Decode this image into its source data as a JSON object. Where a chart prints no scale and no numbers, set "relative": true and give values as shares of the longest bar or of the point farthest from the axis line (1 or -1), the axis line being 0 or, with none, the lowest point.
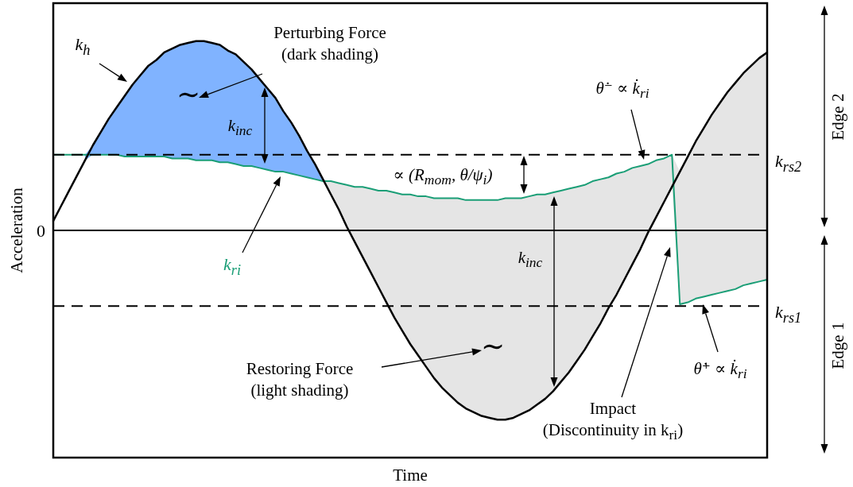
{
  "chart_data": {
    "type": "line",
    "xlabel": "Time",
    "ylabel": "Acceleration",
    "relative": true,
    "categories": [
      null,
      null,
      null,
      null,
      null,
      null,
      null,
      null,
      null,
      null,
      null,
      null,
      null,
      null,
      null,
      null,
      null,
      null,
      null,
      null,
      null,
      null,
      null,
      null,
      null,
      null,
      null,
      null,
      null,
      null,
      null,
      null,
      null,
      null,
      null,
      null,
      null,
      null,
      null,
      null,
      null,
      null,
      null,
      null,
      null,
      null,
      null,
      null,
      null,
      null,
      null,
      null,
      null,
      null,
      null,
      null,
      null,
      null,
      null,
      null,
      null,
      null,
      null,
      null,
      null,
      null,
      null,
      null,
      null,
      null,
      null,
      null,
      null,
      null,
      null,
      null,
      null,
      null,
      null,
      null,
      null,
      null,
      null,
      null,
      null,
      null,
      null,
      null,
      null,
      null,
      null
    ],
    "series": [
      {
        "name": "k$_{h}$",
        "color": "#000000",
        "values": [
          0.05,
          0.13,
          0.21,
          0.29,
          0.37,
          0.45,
          0.52,
          0.59,
          0.65,
          0.71,
          0.77,
          0.82,
          0.87,
          0.9,
          0.94,
          0.96,
          0.98,
          0.99,
          1.0,
          1.0,
          0.99,
          0.98,
          0.95,
          0.93,
          0.89,
          0.85,
          0.8,
          0.75,
          0.7,
          0.63,
          0.57,
          0.5,
          0.42,
          0.35,
          0.27,
          0.19,
          0.11,
          0.02,
          -0.06,
          -0.14,
          -0.22,
          -0.3,
          -0.38,
          -0.46,
          -0.53,
          -0.6,
          -0.66,
          -0.72,
          -0.78,
          -0.83,
          -0.87,
          -0.91,
          -0.94,
          -0.96,
          -0.98,
          -0.99,
          -1.0,
          -1.0,
          -0.99,
          -0.97,
          -0.95,
          -0.92,
          -0.89,
          -0.85,
          -0.8,
          -0.75,
          -0.69,
          -0.63,
          -0.56,
          -0.49,
          -0.41,
          -0.34,
          -0.26,
          -0.18,
          -0.1,
          -0.01,
          0.07,
          0.15,
          0.23,
          0.31,
          0.39,
          0.47,
          0.54,
          0.61,
          0.67,
          0.73,
          0.78,
          0.83,
          0.87,
          0.91,
          0.94
        ]
      },
      {
        "name": "k$_{ri}$",
        "color": "#1a9e76",
        "values": [
          0.4,
          0.4,
          0.4,
          0.4,
          0.4,
          0.4,
          0.4,
          0.4,
          0.4,
          0.39,
          0.39,
          0.39,
          0.39,
          0.39,
          0.39,
          0.38,
          0.38,
          0.38,
          0.37,
          0.37,
          0.37,
          0.36,
          0.36,
          0.35,
          0.34,
          0.34,
          0.33,
          0.32,
          0.31,
          0.31,
          0.3,
          0.29,
          0.28,
          0.27,
          0.26,
          0.26,
          0.25,
          0.24,
          0.23,
          0.23,
          0.22,
          0.21,
          0.21,
          0.2,
          0.19,
          0.19,
          0.18,
          0.18,
          0.17,
          0.17,
          0.17,
          0.17,
          0.16,
          0.16,
          0.16,
          0.16,
          0.16,
          0.17,
          0.17,
          0.17,
          0.18,
          0.19,
          0.19,
          0.2,
          0.21,
          0.22,
          0.23,
          0.24,
          0.26,
          0.27,
          0.28,
          0.3,
          0.31,
          0.33,
          0.34,
          0.35,
          0.37,
          0.38,
          0.4,
          -0.39,
          -0.38,
          -0.36,
          -0.35,
          -0.34,
          -0.33,
          -0.32,
          -0.31,
          -0.29,
          -0.28,
          -0.27,
          -0.26
        ]
      },
      {
        "color": "#80b3ff",
        "values": [
          null,
          null,
          null,
          null,
          null,
          null,
          null,
          null,
          null,
          null,
          null,
          null,
          null,
          null,
          null,
          null,
          null,
          null,
          null,
          null,
          null,
          null,
          null,
          null,
          null,
          null,
          null,
          null,
          null,
          null,
          null,
          null,
          null,
          null,
          null,
          null,
          null,
          null,
          null,
          null,
          null,
          null,
          null,
          null,
          null,
          null,
          null,
          null,
          null,
          null,
          null,
          null,
          null,
          null,
          null,
          null,
          null,
          null,
          null,
          null,
          null,
          null,
          null,
          null,
          null,
          null,
          null,
          null,
          null,
          null,
          null,
          null,
          null,
          null,
          null,
          null,
          null,
          null,
          null,
          null,
          null,
          null,
          null,
          null,
          null,
          null,
          null,
          null,
          null,
          null,
          null
        ],
        "lower": [
          null,
          null,
          null,
          null,
          0.37,
          0.4,
          0.4,
          0.4,
          0.4,
          0.39,
          0.39,
          0.39,
          0.39,
          0.39,
          0.39,
          0.38,
          0.38,
          0.38,
          0.37,
          0.37,
          0.37,
          0.36,
          0.36,
          0.35,
          0.34,
          0.34,
          0.33,
          0.32,
          0.31,
          0.31,
          0.3,
          0.29,
          0.28,
          0.27,
          0.26,
          null,
          null,
          null,
          null,
          null,
          null,
          null,
          null,
          null,
          null,
          null,
          null,
          null,
          null,
          null,
          null,
          null,
          null,
          null,
          null,
          null,
          null,
          null,
          null,
          null,
          null,
          null,
          null,
          null,
          null,
          null,
          null,
          null,
          null,
          null,
          null,
          null,
          null,
          null,
          null,
          null,
          null,
          null,
          null,
          null,
          null,
          null,
          null,
          null,
          null,
          null,
          null,
          null,
          null,
          null,
          null
        ],
        "upper": [
          null,
          null,
          null,
          null,
          0.4,
          0.45,
          0.52,
          0.59,
          0.65,
          0.71,
          0.77,
          0.82,
          0.87,
          0.9,
          0.94,
          0.96,
          0.98,
          0.99,
          1.0,
          1.0,
          0.99,
          0.98,
          0.95,
          0.93,
          0.89,
          0.85,
          0.8,
          0.75,
          0.7,
          0.63,
          0.57,
          0.5,
          0.42,
          0.35,
          0.27,
          null,
          null,
          null,
          null,
          null,
          null,
          null,
          null,
          null,
          null,
          null,
          null,
          null,
          null,
          null,
          null,
          null,
          null,
          null,
          null,
          null,
          null,
          null,
          null,
          null,
          null,
          null,
          null,
          null,
          null,
          null,
          null,
          null,
          null,
          null,
          null,
          null,
          null,
          null,
          null,
          null,
          null,
          null,
          null,
          null,
          null,
          null,
          null,
          null,
          null,
          null,
          null,
          null,
          null,
          null,
          null
        ]
      },
      {
        "color": "#e5e5e5",
        "values": [
          null,
          null,
          null,
          null,
          null,
          null,
          null,
          null,
          null,
          null,
          null,
          null,
          null,
          null,
          null,
          null,
          null,
          null,
          null,
          null,
          null,
          null,
          null,
          null,
          null,
          null,
          null,
          null,
          null,
          null,
          null,
          null,
          null,
          null,
          null,
          null,
          null,
          null,
          null,
          null,
          null,
          null,
          null,
          null,
          null,
          null,
          null,
          null,
          null,
          null,
          null,
          null,
          null,
          null,
          null,
          null,
          null,
          null,
          null,
          null,
          null,
          null,
          null,
          null,
          null,
          null,
          null,
          null,
          null,
          null,
          null,
          null,
          null,
          null,
          null,
          null,
          null,
          null,
          null,
          null,
          null,
          null,
          null,
          null,
          null,
          null,
          null,
          null,
          null,
          null,
          null
        ],
        "lower": [
          null,
          null,
          null,
          null,
          null,
          null,
          null,
          null,
          null,
          null,
          null,
          null,
          null,
          null,
          null,
          null,
          null,
          null,
          null,
          null,
          null,
          null,
          null,
          null,
          null,
          null,
          null,
          null,
          null,
          null,
          null,
          null,
          null,
          null,
          0.26,
          0.19,
          0.11,
          0.02,
          -0.06,
          -0.14,
          -0.22,
          -0.3,
          -0.38,
          -0.46,
          -0.53,
          -0.6,
          -0.66,
          -0.72,
          -0.78,
          -0.83,
          -0.87,
          -0.91,
          -0.94,
          -0.96,
          -0.98,
          -0.99,
          -1.0,
          -1.0,
          -0.99,
          -0.97,
          -0.95,
          -0.92,
          -0.89,
          -0.85,
          -0.8,
          -0.75,
          -0.69,
          -0.63,
          -0.56,
          -0.49,
          -0.41,
          -0.34,
          -0.26,
          -0.18,
          -0.1,
          -0.01,
          0.07,
          0.15,
          0.23,
          -0.39,
          -0.38,
          -0.36,
          -0.35,
          -0.34,
          -0.33,
          -0.32,
          -0.31,
          -0.29,
          -0.28,
          -0.27,
          -0.26
        ],
        "upper": [
          null,
          null,
          null,
          null,
          null,
          null,
          null,
          null,
          null,
          null,
          null,
          null,
          null,
          null,
          null,
          null,
          null,
          null,
          null,
          null,
          null,
          null,
          null,
          null,
          null,
          null,
          null,
          null,
          null,
          null,
          null,
          null,
          null,
          null,
          0.27,
          0.26,
          0.25,
          0.24,
          0.23,
          0.23,
          0.22,
          0.21,
          0.21,
          0.2,
          0.19,
          0.19,
          0.18,
          0.18,
          0.17,
          0.17,
          0.17,
          0.17,
          0.16,
          0.16,
          0.16,
          0.16,
          0.16,
          0.17,
          0.17,
          0.17,
          0.18,
          0.19,
          0.19,
          0.2,
          0.21,
          0.22,
          0.23,
          0.24,
          0.26,
          0.27,
          0.28,
          0.3,
          0.31,
          0.33,
          0.34,
          0.35,
          0.37,
          0.38,
          0.4,
          0.31,
          0.39,
          0.47,
          0.54,
          0.61,
          0.67,
          0.73,
          0.78,
          0.83,
          0.87,
          0.91,
          0.94
        ]
      }
    ],
    "ref_lines": [
      {
        "axis": "y",
        "value": 0,
        "label": "0",
        "color": "#000000",
        "line_style": "solid"
      },
      {
        "axis": "y",
        "value": 0.4,
        "label": "k$_{rs2}$",
        "color": "#000000",
        "line_style": "dashed"
      },
      {
        "axis": "y",
        "value": -0.4,
        "label": "k$_{rs1}$",
        "color": "#000000",
        "line_style": "dashed"
      }
    ],
    "annotations": [
      "Perturbing Force\n(dark shading)",
      "Restoring Force\n(light shading)",
      "Impact\n(Discontinuity in k$_{ri}$)",
      "k$_{inc}$",
      "k$_{inc}$",
      "∝ (R$_{mom}$, θ/ψ$_{i}$)",
      "θ̇⁻ ∝ k̇$_{ri}$",
      "θ̇⁺ ∝ k̇$_{ri}$",
      "Edge 2",
      "Edge 1",
      "∼",
      "∼"
    ]
  }
}
